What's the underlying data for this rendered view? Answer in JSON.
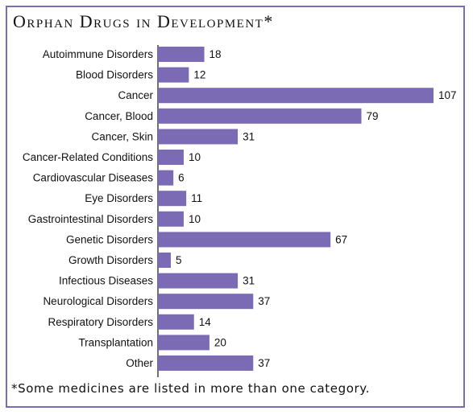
{
  "chart_data": {
    "type": "bar",
    "orientation": "horizontal",
    "title": "Orphan Drugs in Development*",
    "footnote": "*Some medicines are listed in more than one category.",
    "categories": [
      "Autoimmune Disorders",
      "Blood Disorders",
      "Cancer",
      "Cancer, Blood",
      "Cancer, Skin",
      "Cancer-Related Conditions",
      "Cardiovascular Diseases",
      "Eye Disorders",
      "Gastrointestinal Disorders",
      "Genetic Disorders",
      "Growth Disorders",
      "Infectious Diseases",
      "Neurological Disorders",
      "Respiratory Disorders",
      "Transplantation",
      "Other"
    ],
    "values": [
      18,
      12,
      107,
      79,
      31,
      10,
      6,
      11,
      10,
      67,
      5,
      31,
      37,
      14,
      20,
      37
    ],
    "xlim": [
      0,
      107
    ],
    "grid": false,
    "legend": "none",
    "colors": {
      "bar": "#7b6bb5",
      "frame": "#7b6bb5",
      "axis": "#111111",
      "text": "#111111"
    }
  }
}
